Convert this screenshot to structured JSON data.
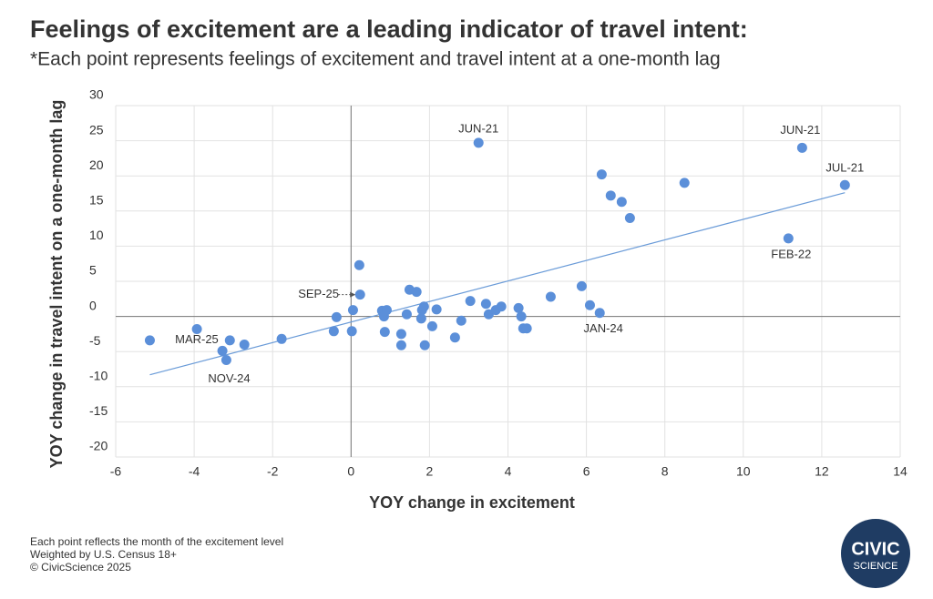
{
  "chart_data": {
    "type": "scatter",
    "title": "Feelings of excitement are a leading indicator of travel intent:",
    "subtitle": "*Each point represents feelings of excitement and travel intent at a one-month lag",
    "x_label": "YOY change in excitement",
    "y_label": "YOY change in travel intent on a one-month lag",
    "xlim": [
      -6,
      14
    ],
    "xticks": [
      -6,
      -4,
      -2,
      0,
      2,
      4,
      6,
      8,
      10,
      12,
      14
    ],
    "ylim": [
      -20,
      30
    ],
    "yticks": [
      -20,
      -15,
      -10,
      -5,
      0,
      5,
      10,
      15,
      20,
      25,
      30
    ],
    "grid": true,
    "color": "#5b8fd9",
    "x": [
      -5.13,
      -3.93,
      -3.28,
      -3.18,
      -3.09,
      -2.72,
      -1.77,
      -0.44,
      -0.37,
      0.02,
      0.05,
      0.21,
      0.23,
      0.79,
      0.84,
      0.86,
      0.91,
      1.28,
      1.28,
      1.42,
      1.49,
      1.67,
      1.79,
      1.81,
      1.86,
      1.88,
      2.07,
      2.18,
      2.65,
      2.81,
      3.04,
      3.25,
      3.44,
      3.51,
      3.69,
      3.83,
      4.27,
      4.34,
      4.39,
      4.48,
      5.09,
      5.88,
      6.09,
      6.34,
      6.39,
      6.62,
      6.9,
      7.11,
      8.5,
      11.15,
      11.5,
      12.59
    ],
    "y": [
      -3.4,
      -1.8,
      -4.9,
      -6.2,
      -3.4,
      -4.0,
      -3.2,
      -2.1,
      -0.1,
      -2.1,
      0.9,
      7.3,
      3.1,
      0.8,
      0.0,
      -2.2,
      0.9,
      -2.5,
      -4.1,
      0.3,
      3.8,
      3.5,
      -0.3,
      0.9,
      1.4,
      -4.1,
      -1.4,
      1.0,
      -3.0,
      -0.6,
      2.2,
      24.7,
      1.8,
      0.3,
      0.9,
      1.4,
      1.2,
      0.0,
      -1.7,
      -1.7,
      2.8,
      4.3,
      1.6,
      0.5,
      20.2,
      17.2,
      16.3,
      14.0,
      19.0,
      11.1,
      24.0,
      18.7
    ],
    "trendline": {
      "color": "#6a9bd8",
      "x": [
        -5.13,
        12.59
      ],
      "y": [
        -8.3,
        17.6
      ]
    },
    "annotations": [
      {
        "text": "JUN-21",
        "x": 3.25,
        "y": 24.7
      },
      {
        "text": "JUN-21",
        "x": 11.5,
        "y": 24.0
      },
      {
        "text": "JUL-21",
        "x": 12.59,
        "y": 18.7
      },
      {
        "text": "FEB-22",
        "x": 11.15,
        "y": 11.1
      },
      {
        "text": "JAN-24",
        "x": 6.34,
        "y": 0.5
      },
      {
        "text": "SEP-25",
        "x": 0.23,
        "y": 3.1
      },
      {
        "text": "MAR-25",
        "x": -3.93,
        "y": -1.8
      },
      {
        "text": "NOV-24",
        "x": -3.18,
        "y": -6.2
      }
    ]
  },
  "footer": {
    "notes": [
      "Each point reflects the month of the excitement level",
      "Weighted by U.S. Census 18+",
      "© CivicScience 2025"
    ],
    "logo": [
      "CIVIC",
      "SCIENCE"
    ]
  }
}
